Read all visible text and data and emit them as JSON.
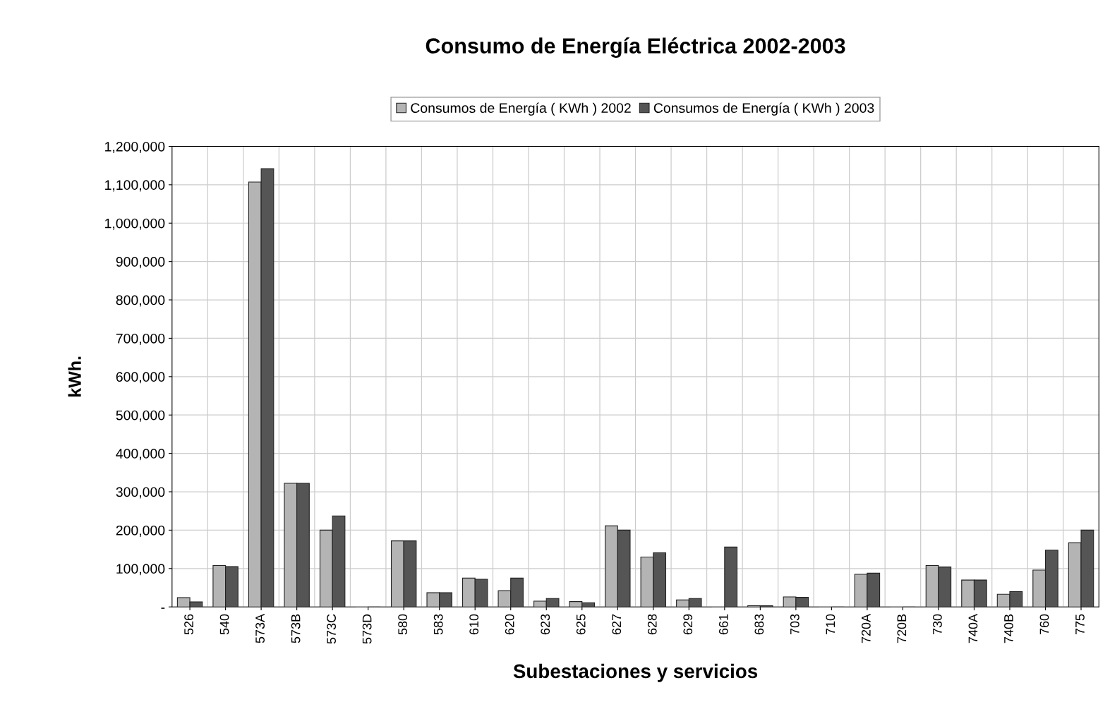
{
  "chart_data": {
    "type": "bar",
    "title": "Consumo de Energía Eléctrica 2002-2003",
    "xlabel": "Subestaciones y servicios",
    "ylabel": "kWh.",
    "categories": [
      "526",
      "540",
      "573A",
      "573B",
      "573C",
      "573D",
      "580",
      "583",
      "610",
      "620",
      "623",
      "625",
      "627",
      "628",
      "629",
      "661",
      "683",
      "703",
      "710",
      "720A",
      "720B",
      "730",
      "740A",
      "740B",
      "760",
      "775"
    ],
    "series": [
      {
        "name": "Consumos de Energía ( KWh ) 2002",
        "color": "#b4b4b4",
        "values": [
          24000,
          108000,
          1107000,
          322000,
          200000,
          0,
          172000,
          37000,
          75000,
          42000,
          15000,
          14000,
          211000,
          130000,
          18000,
          0,
          3000,
          26000,
          0,
          85000,
          0,
          108000,
          70000,
          33000,
          96000,
          167000
        ]
      },
      {
        "name": "Consumos de Energía ( KWh ) 2003",
        "color": "#555555",
        "values": [
          13000,
          105000,
          1142000,
          322000,
          237000,
          0,
          172000,
          37000,
          72000,
          75000,
          22000,
          11000,
          200000,
          141000,
          22000,
          156000,
          3000,
          25000,
          0,
          88000,
          0,
          104000,
          70000,
          40000,
          148000,
          200000
        ]
      }
    ],
    "ylim": [
      0,
      1200000
    ],
    "yticks": [
      {
        "value": 0,
        "label": "-"
      },
      {
        "value": 100000,
        "label": "100,000"
      },
      {
        "value": 200000,
        "label": "200,000"
      },
      {
        "value": 300000,
        "label": "300,000"
      },
      {
        "value": 400000,
        "label": "400,000"
      },
      {
        "value": 500000,
        "label": "500,000"
      },
      {
        "value": 600000,
        "label": "600,000"
      },
      {
        "value": 700000,
        "label": "700,000"
      },
      {
        "value": 800000,
        "label": "800,000"
      },
      {
        "value": 900000,
        "label": "900,000"
      },
      {
        "value": 1000000,
        "label": "1,000,000"
      },
      {
        "value": 1100000,
        "label": "1,100,000"
      },
      {
        "value": 1200000,
        "label": "1,200,000"
      }
    ],
    "grid": true,
    "legend": "top"
  }
}
